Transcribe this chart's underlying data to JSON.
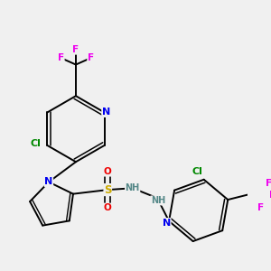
{
  "background_color": "#f0f0f0",
  "figsize": [
    3.0,
    3.0
  ],
  "dpi": 100,
  "atom_colors": {
    "C": "#000000",
    "N": "#0000ee",
    "O": "#ee0000",
    "S": "#ccaa00",
    "F": "#ee00ee",
    "Cl": "#008800",
    "H": "#558888"
  },
  "bond_color": "#000000",
  "bond_lw": 1.4
}
